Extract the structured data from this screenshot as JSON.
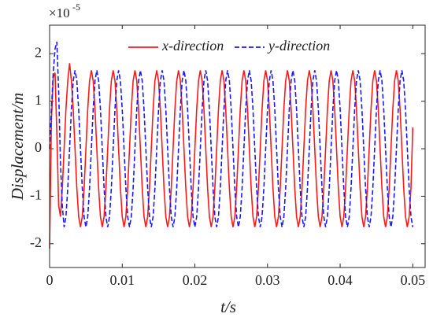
{
  "chart_data": {
    "type": "line",
    "xlabel": "t/s",
    "ylabel": "Displacement/m",
    "y_scale_base": "×10",
    "y_scale_exponent": "-5",
    "legend": "top",
    "xlim": [
      0,
      0.0517
    ],
    "ylim": [
      -2.5,
      2.6
    ],
    "xticks": [
      0,
      0.01,
      0.02,
      0.03,
      0.04,
      0.05
    ],
    "yticks": [
      -2,
      -1,
      0,
      1,
      2
    ],
    "x": [
      0,
      0.00025,
      0.0005,
      0.00075,
      0.001,
      0.00125,
      0.0015,
      0.00175,
      0.002,
      0.00225,
      0.0025,
      0.00275,
      0.003,
      0.00325,
      0.0035,
      0.00375,
      0.004,
      0.00425,
      0.0045,
      0.00475,
      0.005,
      0.00525,
      0.0055,
      0.00575,
      0.006,
      0.00625,
      0.0065,
      0.00675,
      0.007,
      0.00725,
      0.0075,
      0.00775,
      0.008,
      0.00825,
      0.0085,
      0.00875,
      0.009,
      0.00925,
      0.0095,
      0.00975,
      0.01,
      0.01025,
      0.0105,
      0.01075,
      0.011,
      0.01125,
      0.0115,
      0.01175,
      0.012,
      0.01225,
      0.0125,
      0.01275,
      0.013,
      0.01325,
      0.0135,
      0.01375,
      0.014,
      0.01425,
      0.0145,
      0.01475,
      0.015,
      0.01525,
      0.0155,
      0.01575,
      0.016,
      0.01625,
      0.0165,
      0.01675,
      0.017,
      0.01725,
      0.0175,
      0.01775,
      0.018,
      0.01825,
      0.0185,
      0.01875,
      0.019,
      0.01925,
      0.0195,
      0.01975,
      0.02,
      0.02025,
      0.0205,
      0.02075,
      0.021,
      0.02125,
      0.0215,
      0.02175,
      0.022,
      0.02225,
      0.0225,
      0.02275,
      0.023,
      0.02325,
      0.0235,
      0.02375,
      0.024,
      0.02425,
      0.0245,
      0.02475,
      0.025,
      0.02525,
      0.0255,
      0.02575,
      0.026,
      0.02625,
      0.0265,
      0.02675,
      0.027,
      0.02725,
      0.0275,
      0.02775,
      0.028,
      0.02825,
      0.0285,
      0.02875,
      0.029,
      0.02925,
      0.0295,
      0.02975,
      0.03,
      0.03025,
      0.0305,
      0.03075,
      0.031,
      0.03125,
      0.0315,
      0.03175,
      0.032,
      0.03225,
      0.0325,
      0.03275,
      0.033,
      0.03325,
      0.0335,
      0.03375,
      0.034,
      0.03425,
      0.0345,
      0.03475,
      0.035,
      0.03525,
      0.0355,
      0.03575,
      0.036,
      0.03625,
      0.0365,
      0.03675,
      0.037,
      0.03725,
      0.0375,
      0.03775,
      0.038,
      0.03825,
      0.0385,
      0.03875,
      0.039,
      0.03925,
      0.0395,
      0.03975,
      0.04,
      0.04025,
      0.0405,
      0.04075,
      0.041,
      0.04125,
      0.0415,
      0.04175,
      0.042,
      0.04225,
      0.0425,
      0.04275,
      0.043,
      0.04325,
      0.0435,
      0.04375,
      0.044,
      0.04425,
      0.0445,
      0.04475,
      0.045,
      0.04525,
      0.0455,
      0.04575,
      0.046,
      0.04625,
      0.0465,
      0.04675,
      0.047,
      0.04725,
      0.0475,
      0.04775,
      0.048,
      0.04825,
      0.0485,
      0.04875,
      0.049,
      0.04925,
      0.0495,
      0.04975,
      0.05
    ],
    "series": [
      {
        "name": "x-direction",
        "color": "#ff1a1a",
        "dash": "solid",
        "values": [
          -2.1,
          0.6,
          1.5,
          1.6,
          0.3,
          -1.2,
          -1.43,
          -0.83,
          0,
          0.83,
          1.43,
          1.8,
          1.43,
          0.83,
          0,
          -0.83,
          -1.43,
          -1.65,
          -1.43,
          -0.83,
          0,
          0.83,
          1.43,
          1.65,
          1.43,
          0.83,
          0,
          -0.83,
          -1.43,
          -1.65,
          -1.43,
          -0.83,
          0,
          0.83,
          1.43,
          1.65,
          1.43,
          0.83,
          0,
          -0.83,
          -1.43,
          -1.65,
          -1.43,
          -0.83,
          0,
          0.83,
          1.43,
          1.65,
          1.43,
          0.83,
          0,
          -0.83,
          -1.43,
          -1.65,
          -1.43,
          -0.83,
          0,
          0.83,
          1.43,
          1.65,
          1.43,
          0.83,
          0,
          -0.83,
          -1.43,
          -1.65,
          -1.43,
          -0.83,
          0,
          0.83,
          1.43,
          1.65,
          1.43,
          0.83,
          0,
          -0.83,
          -1.43,
          -1.65,
          -1.43,
          -0.83,
          0,
          0.83,
          1.43,
          1.65,
          1.43,
          0.83,
          0,
          -0.83,
          -1.43,
          -1.65,
          -1.43,
          -0.83,
          0,
          0.83,
          1.43,
          1.65,
          1.43,
          0.83,
          0,
          -0.83,
          -1.43,
          -1.65,
          -1.43,
          -0.83,
          0,
          0.83,
          1.43,
          1.65,
          1.43,
          0.83,
          0,
          -0.83,
          -1.43,
          -1.65,
          -1.43,
          -0.83,
          0,
          0.83,
          1.43,
          1.65,
          1.43,
          0.83,
          0,
          -0.83,
          -1.43,
          -1.65,
          -1.43,
          -0.83,
          0,
          0.83,
          1.43,
          1.65,
          1.43,
          0.83,
          0,
          -0.83,
          -1.43,
          -1.65,
          -1.43,
          -0.83,
          0,
          0.83,
          1.43,
          1.65,
          1.43,
          0.83,
          0,
          -0.83,
          -1.43,
          -1.65,
          -1.43,
          -0.83,
          0,
          0.83,
          1.43,
          1.65,
          1.43,
          0.83,
          0,
          -0.83,
          -1.43,
          -1.65,
          -1.43,
          -0.83,
          0,
          0.83,
          1.43,
          1.65,
          1.43,
          0.83,
          0,
          -0.83,
          -1.43,
          -1.65,
          -1.43,
          -0.83,
          0,
          0.83,
          1.43,
          1.65,
          1.43,
          0.83,
          0,
          -0.83,
          -1.43,
          -1.65,
          -1.43,
          -0.83,
          0,
          0.83,
          1.43,
          1.65,
          1.43,
          0.83,
          0,
          -0.83,
          -1.43,
          -1.65,
          -1.43,
          -0.83,
          0.45
        ]
      },
      {
        "name": "y-direction",
        "color": "#1a1aff",
        "dash": "dashed",
        "values": [
          0,
          0.8,
          1.6,
          2.1,
          2.25,
          1.2,
          -0.3,
          -1.2,
          -1.65,
          -1.43,
          -0.83,
          0,
          0.83,
          1.43,
          1.65,
          1.43,
          0.83,
          0,
          -0.83,
          -1.43,
          -1.65,
          -1.43,
          -0.83,
          0,
          0.83,
          1.43,
          1.65,
          1.43,
          0.83,
          0,
          -0.83,
          -1.43,
          -1.65,
          -1.43,
          -0.83,
          0,
          0.83,
          1.43,
          1.65,
          1.43,
          0.83,
          0,
          -0.83,
          -1.43,
          -1.65,
          -1.43,
          -0.83,
          0,
          0.83,
          1.43,
          1.65,
          1.43,
          0.83,
          0,
          -0.83,
          -1.43,
          -1.65,
          -1.43,
          -0.83,
          0,
          0.83,
          1.43,
          1.65,
          1.43,
          0.83,
          0,
          -0.83,
          -1.43,
          -1.65,
          -1.43,
          -0.83,
          0,
          0.83,
          1.43,
          1.65,
          1.43,
          0.83,
          0,
          -0.83,
          -1.43,
          -1.65,
          -1.43,
          -0.83,
          0,
          0.83,
          1.43,
          1.65,
          1.43,
          0.83,
          0,
          -0.83,
          -1.43,
          -1.65,
          -1.43,
          -0.83,
          0,
          0.83,
          1.43,
          1.65,
          1.43,
          0.83,
          0,
          -0.83,
          -1.43,
          -1.65,
          -1.43,
          -0.83,
          0,
          0.83,
          1.43,
          1.65,
          1.43,
          0.83,
          0,
          -0.83,
          -1.43,
          -1.65,
          -1.43,
          -0.83,
          0,
          0.83,
          1.43,
          1.65,
          1.43,
          0.83,
          0,
          -0.83,
          -1.43,
          -1.65,
          -1.43,
          -0.83,
          0,
          0.83,
          1.43,
          1.65,
          1.43,
          0.83,
          0,
          -0.83,
          -1.43,
          -1.65,
          -1.43,
          -0.83,
          0,
          0.83,
          1.43,
          1.65,
          1.43,
          0.83,
          0,
          -0.83,
          -1.43,
          -1.65,
          -1.43,
          -0.83,
          0,
          0.83,
          1.43,
          1.65,
          1.43,
          0.83,
          0,
          -0.83,
          -1.43,
          -1.65,
          -1.43,
          -0.83,
          0,
          0.83,
          1.43,
          1.65,
          1.43,
          0.83,
          0,
          -0.83,
          -1.43,
          -1.65,
          -1.43,
          -0.83,
          0,
          0.83,
          1.43,
          1.65,
          1.43,
          0.83,
          0,
          -0.83,
          -1.43,
          -1.65,
          -1.43,
          -0.83,
          0,
          0.83,
          1.43,
          1.65,
          1.43,
          0.83,
          0,
          -0.83,
          -1.43,
          -1.65
        ]
      }
    ]
  }
}
